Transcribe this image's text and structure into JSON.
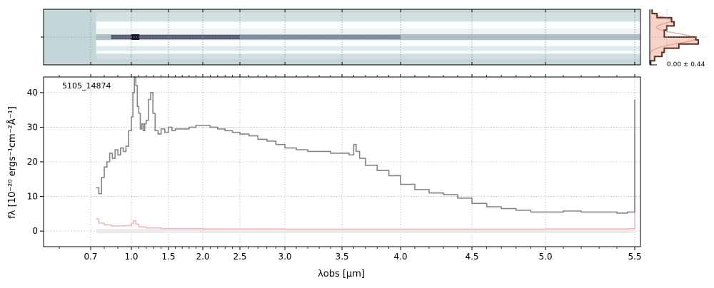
{
  "chart_data": [
    {
      "type": "heatmap",
      "panel": "2D spectrum",
      "colormap": [
        "#c4d6d8",
        "#ffffff",
        "#1a1730"
      ],
      "background_color": "#c4d6d8",
      "trace_row_center": 0.5,
      "emission_peak_x_um": 1.05
    },
    {
      "type": "line",
      "panel": "spatial profile",
      "tick_label": "0.00 ± 0.44",
      "colors": {
        "profile": "#5a3128",
        "fill": "#f4c7ba",
        "model": "#e99d8c"
      },
      "profile": [
        [
          -1.0,
          0.05
        ],
        [
          -0.85,
          0.15
        ],
        [
          -0.7,
          0.45
        ],
        [
          -0.55,
          0.5
        ],
        [
          -0.4,
          0.35
        ],
        [
          -0.25,
          0.3
        ],
        [
          -0.1,
          0.3
        ],
        [
          0.0,
          0.95
        ],
        [
          0.1,
          1.0
        ],
        [
          0.25,
          0.6
        ],
        [
          0.4,
          0.3
        ],
        [
          0.55,
          0.25
        ],
        [
          0.7,
          0.1
        ],
        [
          0.85,
          0.02
        ]
      ]
    },
    {
      "type": "line",
      "panel": "1D spectrum",
      "label": "5105_14874",
      "xlabel": "λobs [μm]",
      "ylabel": "fλ [10⁻²⁰ ergs⁻¹cm⁻²Å⁻¹]",
      "x_scale": "nonlinear (prism resolution)",
      "xlim": [
        0.55,
        5.53
      ],
      "ylim": [
        -4.5,
        44.5
      ],
      "x_ticks": [
        0.7,
        1.0,
        1.5,
        2.0,
        2.5,
        3.0,
        3.5,
        4.0,
        4.5,
        5.0,
        5.5
      ],
      "x_tick_labels": [
        "0.7",
        "1.0",
        "1.5",
        "2.0",
        "2.5",
        "3.0",
        "3.5",
        "4.0",
        "4.5",
        "5.0",
        "5.5"
      ],
      "y_ticks": [
        0,
        10,
        20,
        30,
        40
      ],
      "y_tick_labels": [
        "0",
        "10",
        "20",
        "30",
        "40"
      ],
      "grid": true,
      "colors": {
        "flux": "#858585",
        "error": "#f4b8b8",
        "error_band": "#ebebeb"
      },
      "series": [
        {
          "values": [
            [
              0.74,
              12.5
            ],
            [
              0.76,
              10.8
            ],
            [
              0.78,
              15.5
            ],
            [
              0.8,
              18.5
            ],
            [
              0.82,
              20.0
            ],
            [
              0.84,
              22.5
            ],
            [
              0.86,
              21.0
            ],
            [
              0.88,
              23.5
            ],
            [
              0.9,
              22.0
            ],
            [
              0.92,
              24.0
            ],
            [
              0.94,
              23.0
            ],
            [
              0.96,
              24.5
            ],
            [
              0.98,
              29.0
            ],
            [
              1.0,
              33.0
            ],
            [
              1.02,
              40.0
            ],
            [
              1.04,
              44.5
            ],
            [
              1.06,
              42.0
            ],
            [
              1.08,
              36.0
            ],
            [
              1.1,
              34.0
            ],
            [
              1.12,
              29.5
            ],
            [
              1.14,
              31.0
            ],
            [
              1.16,
              29.0
            ],
            [
              1.18,
              31.0
            ],
            [
              1.2,
              32.0
            ],
            [
              1.23,
              38.0
            ],
            [
              1.26,
              40.0
            ],
            [
              1.29,
              34.0
            ],
            [
              1.32,
              29.0
            ],
            [
              1.36,
              28.0
            ],
            [
              1.4,
              29.5
            ],
            [
              1.45,
              28.5
            ],
            [
              1.5,
              30.0
            ],
            [
              1.55,
              29.0
            ],
            [
              1.6,
              29.5
            ],
            [
              1.7,
              29.5
            ],
            [
              1.8,
              30.0
            ],
            [
              1.9,
              30.5
            ],
            [
              2.0,
              30.5
            ],
            [
              2.1,
              30.0
            ],
            [
              2.2,
              29.5
            ],
            [
              2.3,
              29.0
            ],
            [
              2.4,
              28.5
            ],
            [
              2.5,
              28.0
            ],
            [
              2.6,
              27.5
            ],
            [
              2.7,
              26.5
            ],
            [
              2.8,
              26.0
            ],
            [
              2.9,
              25.0
            ],
            [
              3.0,
              24.0
            ],
            [
              3.1,
              23.5
            ],
            [
              3.2,
              23.0
            ],
            [
              3.3,
              23.0
            ],
            [
              3.4,
              22.5
            ],
            [
              3.5,
              22.5
            ],
            [
              3.56,
              22.0
            ],
            [
              3.6,
              25.0
            ],
            [
              3.62,
              23.0
            ],
            [
              3.65,
              21.0
            ],
            [
              3.7,
              19.0
            ],
            [
              3.8,
              17.5
            ],
            [
              3.9,
              16.0
            ],
            [
              4.0,
              13.5
            ],
            [
              4.1,
              12.0
            ],
            [
              4.2,
              11.0
            ],
            [
              4.3,
              10.5
            ],
            [
              4.4,
              9.5
            ],
            [
              4.5,
              8.0
            ],
            [
              4.6,
              7.0
            ],
            [
              4.7,
              6.5
            ],
            [
              4.8,
              6.0
            ],
            [
              4.9,
              5.5
            ],
            [
              5.0,
              5.5
            ],
            [
              5.1,
              5.8
            ],
            [
              5.2,
              5.5
            ],
            [
              5.3,
              5.5
            ],
            [
              5.4,
              5.2
            ],
            [
              5.46,
              5.5
            ],
            [
              5.5,
              38.0
            ]
          ]
        },
        {
          "values": [
            [
              0.74,
              3.5
            ],
            [
              0.76,
              2.3
            ],
            [
              0.8,
              1.8
            ],
            [
              0.85,
              1.5
            ],
            [
              0.9,
              1.5
            ],
            [
              0.95,
              1.6
            ],
            [
              1.0,
              2.2
            ],
            [
              1.03,
              3.0
            ],
            [
              1.06,
              2.0
            ],
            [
              1.1,
              1.2
            ],
            [
              1.2,
              0.9
            ],
            [
              1.4,
              0.7
            ],
            [
              2.0,
              0.6
            ],
            [
              3.0,
              0.55
            ],
            [
              4.0,
              0.55
            ],
            [
              5.0,
              0.6
            ],
            [
              5.46,
              0.7
            ],
            [
              5.5,
              28.0
            ]
          ]
        }
      ]
    }
  ]
}
